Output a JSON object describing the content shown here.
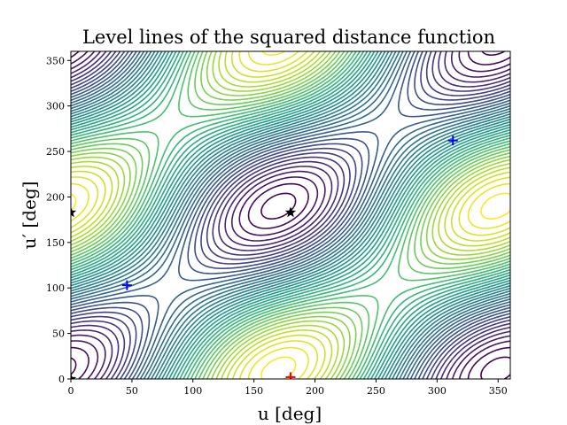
{
  "chart_data": {
    "type": "contour",
    "title": "Level lines of the squared distance function",
    "xlabel": "u [deg]",
    "ylabel": "u′ [deg]",
    "xlim": [
      0,
      360
    ],
    "ylim": [
      0,
      360
    ],
    "x_ticks": [
      0,
      50,
      100,
      150,
      200,
      250,
      300,
      350
    ],
    "y_ticks": [
      0,
      50,
      100,
      150,
      200,
      250,
      300,
      350
    ],
    "colormap": "viridis",
    "grid": false,
    "minima": [
      {
        "u": 46,
        "up": 103,
        "marker": "plus",
        "color": "#0000ff"
      },
      {
        "u": 313,
        "up": 262,
        "marker": "plus",
        "color": "#0000ff"
      }
    ],
    "maxima": [
      {
        "u": 180,
        "up": 2,
        "marker": "plus",
        "color": "#ff0000"
      }
    ],
    "saddles": [
      {
        "u": 180,
        "up": 183,
        "marker": "star",
        "color": "#000000"
      },
      {
        "u": 0,
        "up": 183,
        "marker": "star",
        "color": "#000000"
      },
      {
        "u": 0,
        "up": 0,
        "marker": "star",
        "color": "#000000"
      }
    ],
    "level_count": 40
  }
}
